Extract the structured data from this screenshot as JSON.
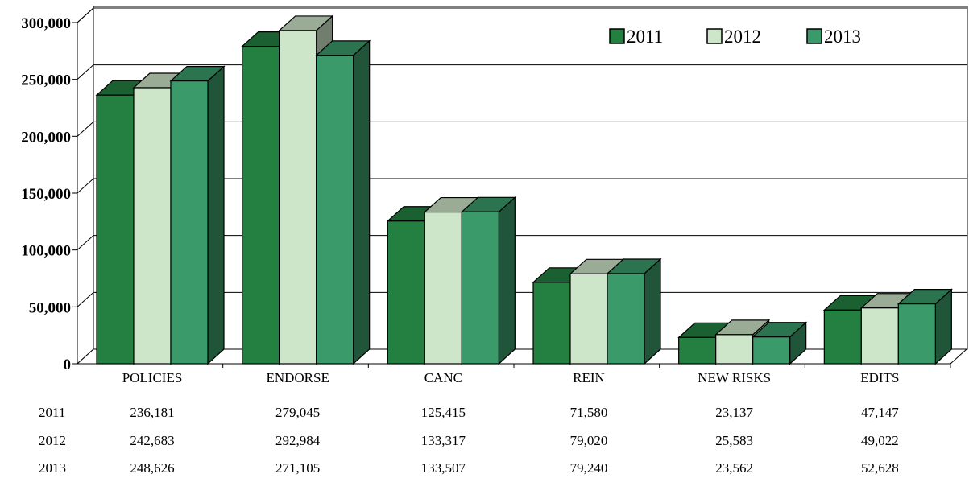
{
  "chart_data": {
    "type": "bar",
    "categories": [
      "POLICIES",
      "ENDORSE",
      "CANC",
      "REIN",
      "NEW RISKS",
      "EDITS"
    ],
    "series": [
      {
        "name": "2011",
        "values": [
          236181,
          279045,
          125415,
          71580,
          23137,
          47147
        ],
        "color": "#238040"
      },
      {
        "name": "2012",
        "values": [
          242683,
          292984,
          133317,
          79020,
          25583,
          49022
        ],
        "color": "#cde5c8"
      },
      {
        "name": "2013",
        "values": [
          248626,
          271105,
          133507,
          79240,
          23562,
          52628
        ],
        "color": "#3a9a6a"
      }
    ],
    "table": {
      "rows": [
        {
          "label": "2011",
          "cells": [
            "236,181",
            "279,045",
            "125,415",
            "71,580",
            "23,137",
            "47,147"
          ]
        },
        {
          "label": "2012",
          "cells": [
            "242,683",
            "292,984",
            "133,317",
            "79,020",
            "25,583",
            "49,022"
          ]
        },
        {
          "label": "2013",
          "cells": [
            "248,626",
            "271,105",
            "133,507",
            "79,240",
            "23,562",
            "52,628"
          ]
        }
      ]
    },
    "yticks": [
      "0",
      "50,000",
      "100,000",
      "150,000",
      "200,000",
      "250,000",
      "300,000"
    ],
    "ylim": [
      0,
      300000
    ],
    "grid": true,
    "legend_position": "top-right",
    "title": "",
    "xlabel": "",
    "ylabel": ""
  }
}
